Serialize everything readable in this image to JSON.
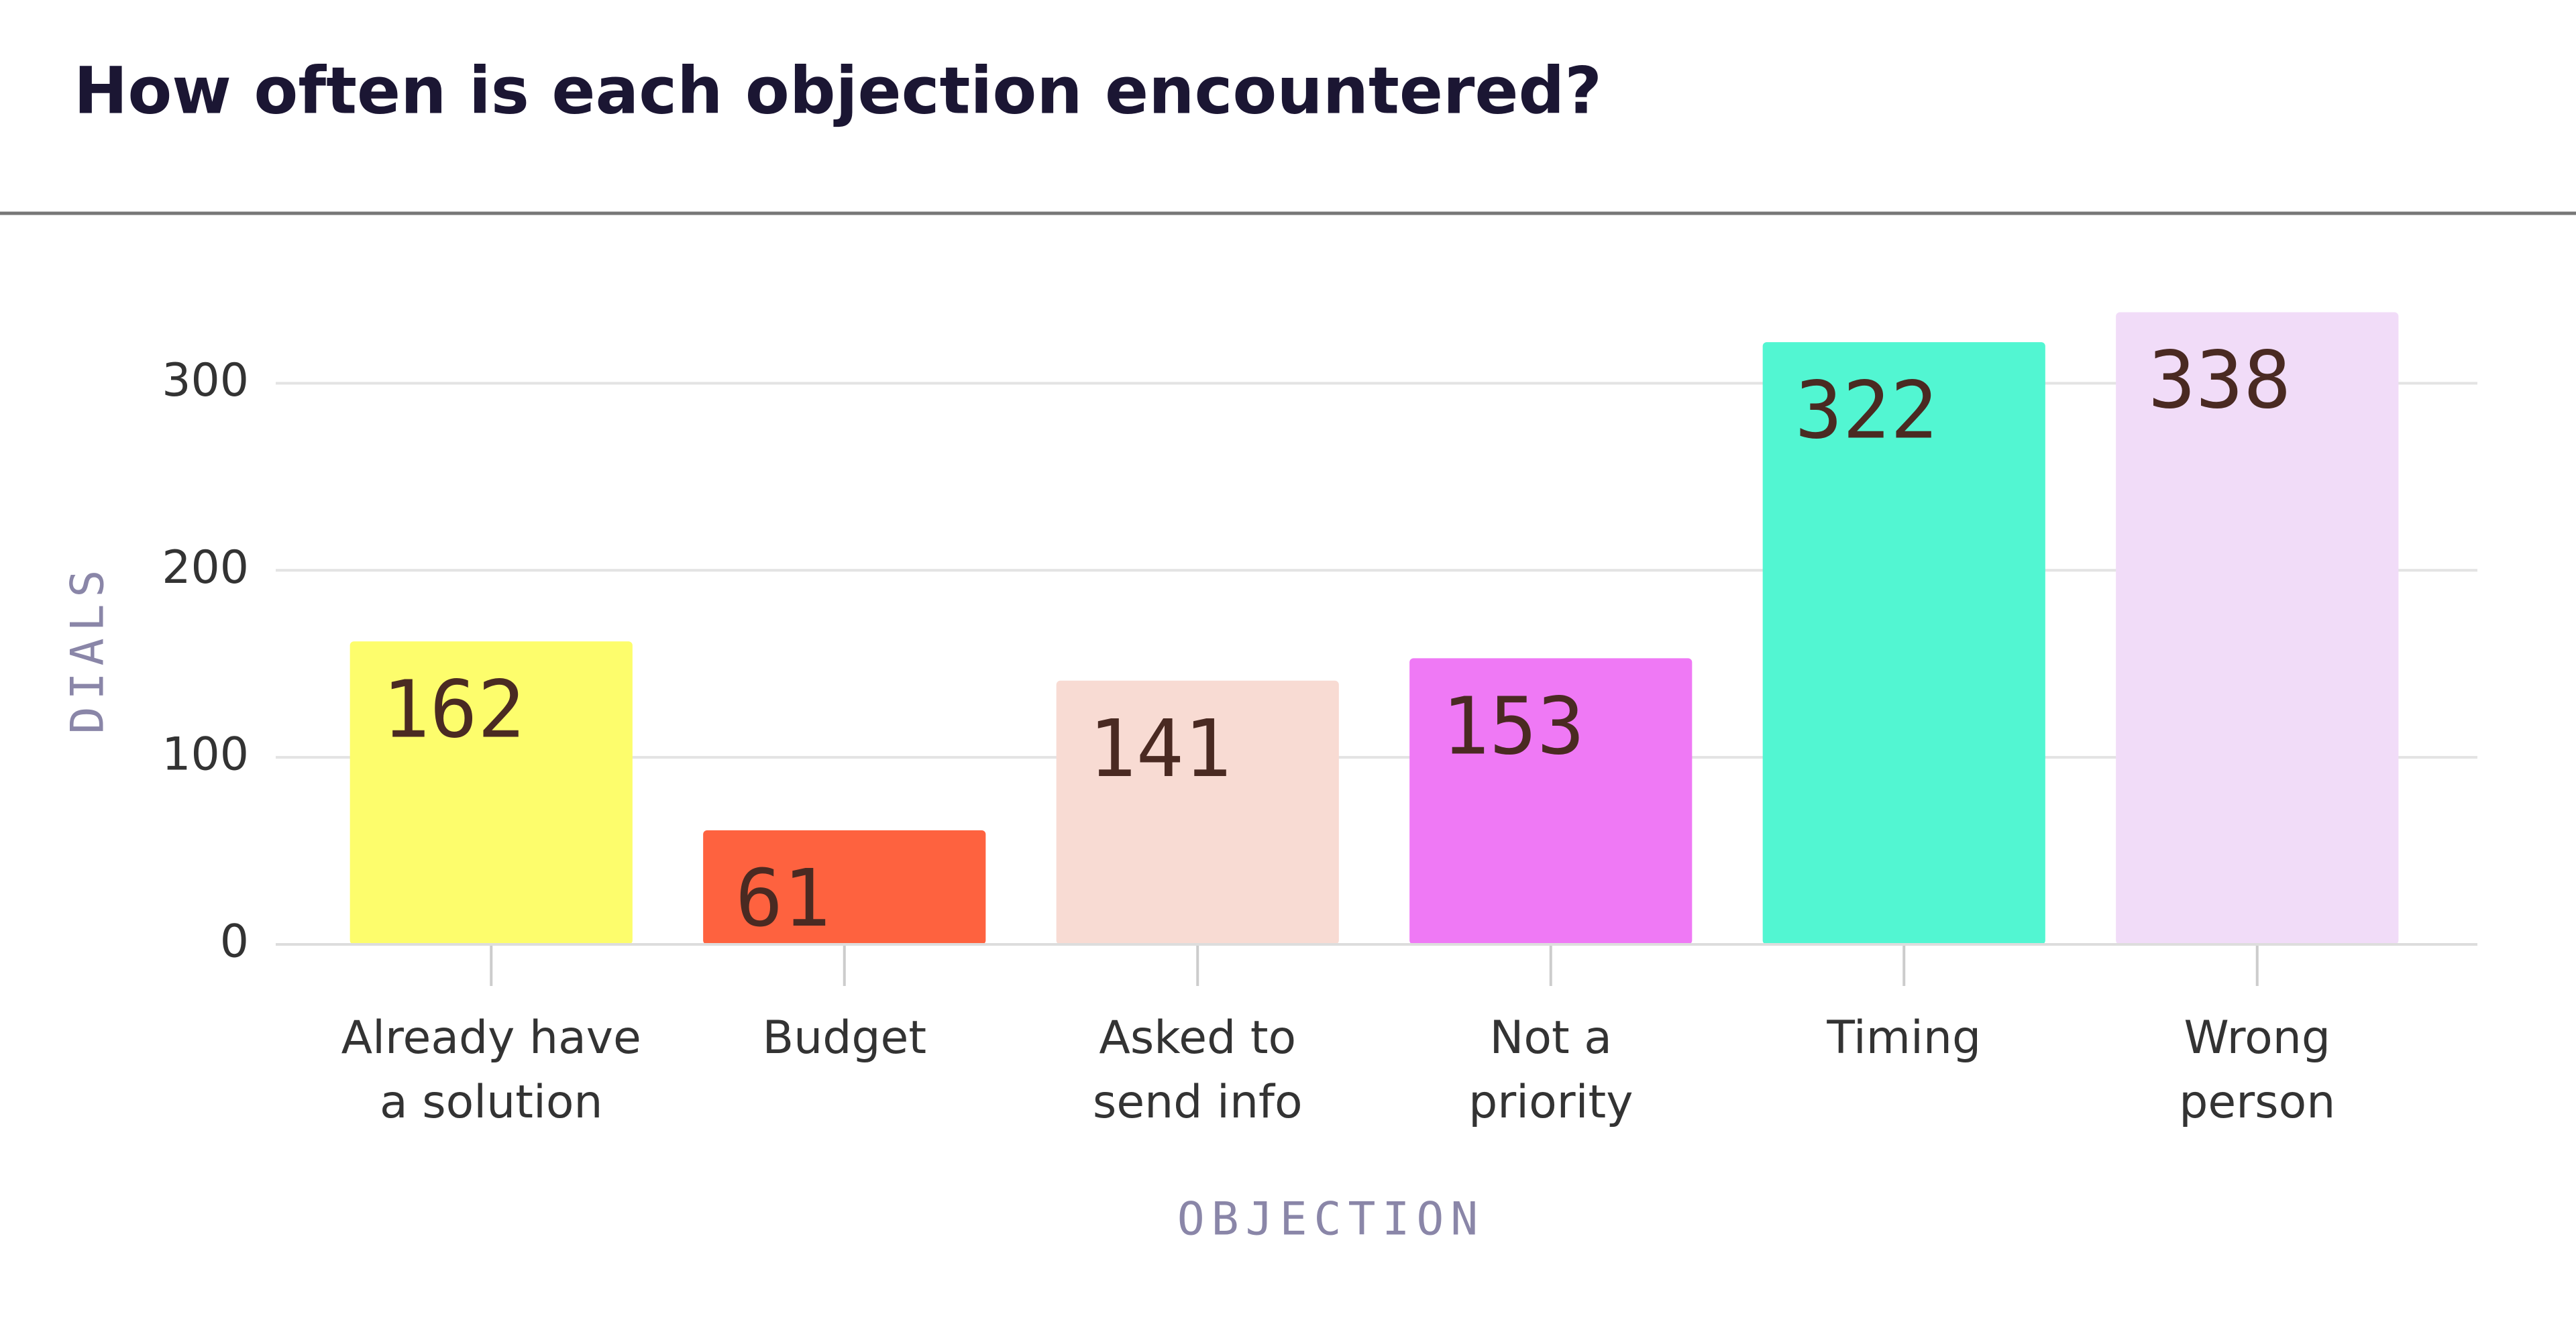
{
  "chart_data": {
    "type": "bar",
    "title": "How often is each objection encountered?",
    "x_label": "OBJECTION",
    "y_label": "DIALS",
    "categories": [
      "Already have\na solution",
      "Budget",
      "Asked to\nsend info",
      "Not a\npriority",
      "Timing",
      "Wrong\nperson"
    ],
    "values": [
      162,
      61,
      141,
      153,
      322,
      338
    ],
    "colors": [
      "#fdfd6c",
      "#fe623f",
      "#f8dbd3",
      "#ef79f5",
      "#52f6d2",
      "#f1dcf8"
    ],
    "ylim": [
      0,
      350
    ],
    "yticks": [
      0,
      100,
      200,
      300
    ],
    "grid": true
  }
}
